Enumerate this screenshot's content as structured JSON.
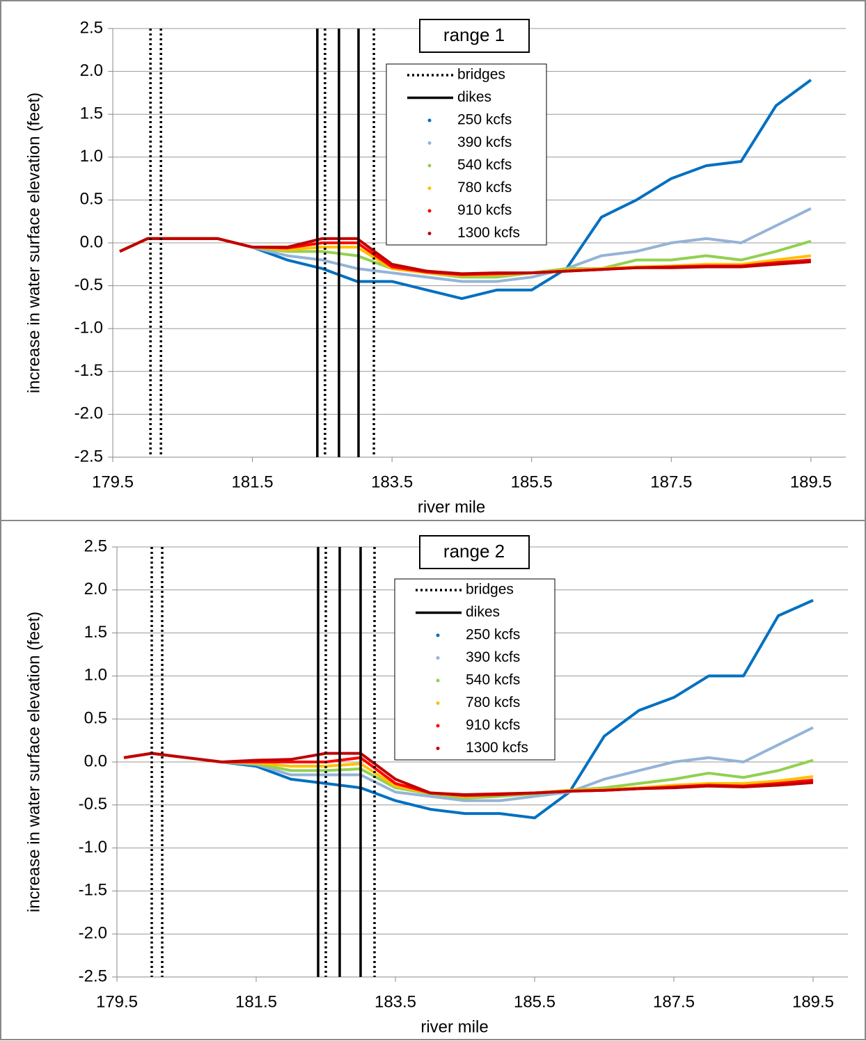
{
  "chart_data": [
    {
      "type": "line",
      "title": "range 1",
      "x_label": "river mile",
      "y_label": "increase in water surface elevation (feet)",
      "xlim": [
        179.5,
        190
      ],
      "xticks": [
        179.5,
        181.5,
        183.5,
        185.5,
        187.5,
        189.5
      ],
      "ylim": [
        -2.5,
        2.5
      ],
      "yticks": [
        {
          "value": -2.5,
          "label": "-2.5"
        },
        {
          "value": -2,
          "label": "-2.0"
        },
        {
          "value": -1.5,
          "label": "-1.5"
        },
        {
          "value": -1,
          "label": "-1.0"
        },
        {
          "value": -0.5,
          "label": "-0.5"
        },
        {
          "value": 0,
          "label": "0.0"
        },
        {
          "value": 0.5,
          "label": "0.5"
        },
        {
          "value": 1,
          "label": "1.0"
        },
        {
          "value": 1.5,
          "label": "1.5"
        },
        {
          "value": 2,
          "label": "2.0"
        },
        {
          "value": 2.5,
          "label": "2.5"
        }
      ],
      "grid": true,
      "vlines": [
        {
          "name": "bridges",
          "style": "dotted",
          "color": "#000000",
          "x": [
            180.04,
            180.19,
            182.54,
            183.24
          ]
        },
        {
          "name": "dikes",
          "style": "solid",
          "color": "#000000",
          "x": [
            182.43,
            182.74,
            183.02
          ]
        }
      ],
      "x": [
        179.6,
        180,
        180.5,
        181,
        181.5,
        182,
        182.5,
        183,
        183.5,
        184,
        184.5,
        185,
        185.5,
        186,
        186.5,
        187,
        187.5,
        188,
        188.5,
        189,
        189.5
      ],
      "series": [
        {
          "name": "250 kcfs",
          "color": "#0070c0",
          "values": [
            -0.1,
            0.05,
            0.05,
            0.05,
            -0.05,
            -0.2,
            -0.3,
            -0.45,
            -0.45,
            -0.55,
            -0.65,
            -0.55,
            -0.55,
            -0.3,
            0.3,
            0.5,
            0.75,
            0.9,
            0.95,
            1.6,
            1.9
          ]
        },
        {
          "name": "390 kcfs",
          "color": "#95b3d7",
          "values": [
            -0.1,
            0.05,
            0.05,
            0.05,
            -0.05,
            -0.15,
            -0.2,
            -0.3,
            -0.35,
            -0.4,
            -0.45,
            -0.45,
            -0.4,
            -0.3,
            -0.15,
            -0.1,
            0,
            0.05,
            0,
            0.2,
            0.4
          ]
        },
        {
          "name": "540 kcfs",
          "color": "#92d050",
          "values": [
            -0.1,
            0.05,
            0.05,
            0.05,
            -0.05,
            -0.1,
            -0.1,
            -0.15,
            -0.3,
            -0.35,
            -0.4,
            -0.4,
            -0.35,
            -0.3,
            -0.3,
            -0.2,
            -0.2,
            -0.15,
            -0.2,
            -0.1,
            0.02
          ]
        },
        {
          "name": "780 kcfs",
          "color": "#ffc000",
          "values": [
            -0.1,
            0.05,
            0.05,
            0.05,
            -0.05,
            -0.08,
            -0.05,
            -0.05,
            -0.3,
            -0.35,
            -0.38,
            -0.37,
            -0.35,
            -0.32,
            -0.3,
            -0.28,
            -0.27,
            -0.25,
            -0.25,
            -0.2,
            -0.15
          ]
        },
        {
          "name": "910 kcfs",
          "color": "#ff0000",
          "values": [
            -0.1,
            0.05,
            0.05,
            0.05,
            -0.05,
            -0.06,
            0,
            0,
            -0.28,
            -0.34,
            -0.37,
            -0.36,
            -0.35,
            -0.33,
            -0.31,
            -0.29,
            -0.28,
            -0.27,
            -0.27,
            -0.23,
            -0.2
          ]
        },
        {
          "name": "1300 kcfs",
          "color": "#c00000",
          "values": [
            -0.1,
            0.05,
            0.05,
            0.05,
            -0.05,
            -0.05,
            0.05,
            0.05,
            -0.25,
            -0.33,
            -0.36,
            -0.35,
            -0.35,
            -0.33,
            -0.31,
            -0.29,
            -0.29,
            -0.28,
            -0.28,
            -0.25,
            -0.22
          ]
        }
      ]
    },
    {
      "type": "line",
      "title": "range 2",
      "x_label": "river mile",
      "y_label": "increase in water surface elevation (feet)",
      "xlim": [
        179.5,
        190
      ],
      "xticks": [
        179.5,
        181.5,
        183.5,
        185.5,
        187.5,
        189.5
      ],
      "ylim": [
        -2.5,
        2.5
      ],
      "yticks": [
        {
          "value": -2.5,
          "label": "-2.5"
        },
        {
          "value": -2,
          "label": "-2.0"
        },
        {
          "value": -1.5,
          "label": "-1.5"
        },
        {
          "value": -1,
          "label": "-1.0"
        },
        {
          "value": -0.5,
          "label": "-0.5"
        },
        {
          "value": 0,
          "label": "0.0"
        },
        {
          "value": 0.5,
          "label": "0.5"
        },
        {
          "value": 1,
          "label": "1.0"
        },
        {
          "value": 1.5,
          "label": "1.5"
        },
        {
          "value": 2,
          "label": "2.0"
        },
        {
          "value": 2.5,
          "label": "2.5"
        }
      ],
      "grid": true,
      "vlines": [
        {
          "name": "bridges",
          "style": "dotted",
          "color": "#000000",
          "x": [
            180.0,
            180.15,
            182.5,
            183.2
          ]
        },
        {
          "name": "dikes",
          "style": "solid",
          "color": "#000000",
          "x": [
            182.39,
            182.7,
            183.0
          ]
        }
      ],
      "x": [
        179.6,
        180,
        180.5,
        181,
        181.5,
        182,
        182.5,
        183,
        183.5,
        184,
        184.5,
        185,
        185.5,
        186,
        186.5,
        187,
        187.5,
        188,
        188.5,
        189,
        189.5
      ],
      "series": [
        {
          "name": "250 kcfs",
          "color": "#0070c0",
          "values": [
            0.05,
            0.1,
            0.05,
            0,
            -0.05,
            -0.2,
            -0.25,
            -0.3,
            -0.45,
            -0.55,
            -0.6,
            -0.6,
            -0.65,
            -0.35,
            0.3,
            0.6,
            0.75,
            1.0,
            1.0,
            1.7,
            1.88
          ]
        },
        {
          "name": "390 kcfs",
          "color": "#95b3d7",
          "values": [
            0.05,
            0.1,
            0.05,
            0,
            -0.03,
            -0.15,
            -0.15,
            -0.15,
            -0.35,
            -0.4,
            -0.45,
            -0.45,
            -0.4,
            -0.35,
            -0.2,
            -0.1,
            0,
            0.05,
            0,
            0.2,
            0.4
          ]
        },
        {
          "name": "540 kcfs",
          "color": "#92d050",
          "values": [
            0.05,
            0.1,
            0.05,
            0,
            -0.02,
            -0.1,
            -0.1,
            -0.08,
            -0.3,
            -0.37,
            -0.42,
            -0.4,
            -0.37,
            -0.33,
            -0.3,
            -0.25,
            -0.2,
            -0.13,
            -0.18,
            -0.1,
            0.02
          ]
        },
        {
          "name": "780 kcfs",
          "color": "#ffc000",
          "values": [
            0.05,
            0.1,
            0.05,
            0,
            -0.01,
            -0.05,
            -0.05,
            -0.02,
            -0.28,
            -0.36,
            -0.4,
            -0.38,
            -0.36,
            -0.33,
            -0.32,
            -0.3,
            -0.27,
            -0.25,
            -0.25,
            -0.22,
            -0.17
          ]
        },
        {
          "name": "910 kcfs",
          "color": "#ff0000",
          "values": [
            0.05,
            0.1,
            0.05,
            0,
            0,
            0,
            0,
            0.05,
            -0.25,
            -0.36,
            -0.39,
            -0.38,
            -0.36,
            -0.34,
            -0.33,
            -0.31,
            -0.29,
            -0.27,
            -0.28,
            -0.25,
            -0.21
          ]
        },
        {
          "name": "1300 kcfs",
          "color": "#c00000",
          "values": [
            0.05,
            0.1,
            0.05,
            0,
            0.02,
            0.03,
            0.1,
            0.1,
            -0.2,
            -0.36,
            -0.38,
            -0.37,
            -0.36,
            -0.34,
            -0.33,
            -0.31,
            -0.3,
            -0.28,
            -0.29,
            -0.27,
            -0.24
          ]
        }
      ]
    }
  ]
}
